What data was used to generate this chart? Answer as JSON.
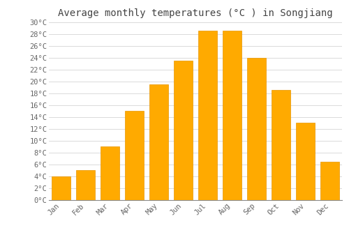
{
  "title": "Average monthly temperatures (°C ) in Songjiang",
  "months": [
    "Jan",
    "Feb",
    "Mar",
    "Apr",
    "May",
    "Jun",
    "Jul",
    "Aug",
    "Sep",
    "Oct",
    "Nov",
    "Dec"
  ],
  "values": [
    4,
    5,
    9,
    15,
    19.5,
    23.5,
    28.5,
    28.5,
    24,
    18.5,
    13,
    6.5
  ],
  "bar_color": "#FFAA00",
  "bar_edge_color": "#E89500",
  "ylim": [
    0,
    30
  ],
  "background_color": "#FFFFFF",
  "grid_color": "#CCCCCC",
  "title_fontsize": 10,
  "tick_fontsize": 7.5,
  "font_family": "monospace",
  "title_color": "#444444",
  "tick_color": "#666666"
}
